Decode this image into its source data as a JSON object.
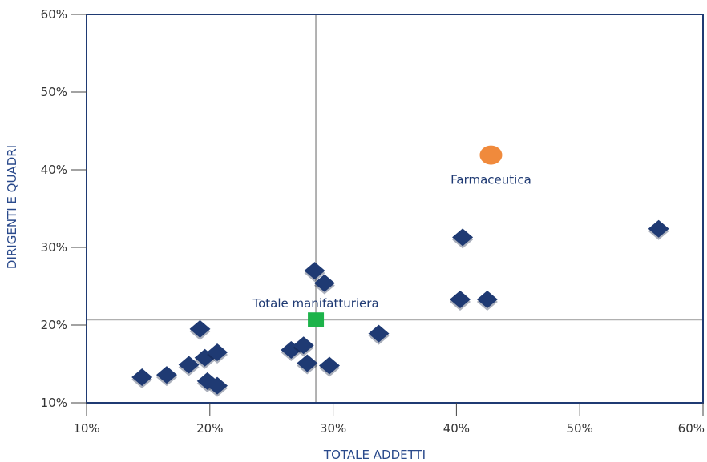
{
  "chart_data": {
    "type": "scatter",
    "xlabel": "TOTALE ADDETTI",
    "ylabel": "DIRIGENTI E QUADRI",
    "xlim": [
      10,
      60
    ],
    "ylim": [
      10,
      60
    ],
    "x_ticks": [
      "10%",
      "20%",
      "30%",
      "40%",
      "50%",
      "60%"
    ],
    "y_ticks": [
      "10%",
      "20%",
      "30%",
      "40%",
      "50%",
      "60%"
    ],
    "grid": false,
    "reference_lines": {
      "x": 28.6,
      "y": 20.7
    },
    "colors": {
      "sectors": "#1f3a73",
      "total": "#1db34a",
      "highlight": "#f08a3c",
      "frame": "#1f3a73",
      "reference": "#b0b0b0"
    },
    "series": [
      {
        "marker": "diamond",
        "points": [
          {
            "x": 14.5,
            "y": 13.3
          },
          {
            "x": 16.5,
            "y": 13.6
          },
          {
            "x": 18.3,
            "y": 14.9
          },
          {
            "x": 19.2,
            "y": 19.5
          },
          {
            "x": 19.6,
            "y": 15.8
          },
          {
            "x": 19.8,
            "y": 12.8
          },
          {
            "x": 20.6,
            "y": 16.5
          },
          {
            "x": 20.6,
            "y": 12.2
          },
          {
            "x": 26.6,
            "y": 16.8
          },
          {
            "x": 27.6,
            "y": 17.4
          },
          {
            "x": 27.9,
            "y": 15.1
          },
          {
            "x": 28.5,
            "y": 27.0
          },
          {
            "x": 29.3,
            "y": 25.4
          },
          {
            "x": 29.7,
            "y": 14.8
          },
          {
            "x": 33.7,
            "y": 18.9
          },
          {
            "x": 40.3,
            "y": 23.3
          },
          {
            "x": 40.5,
            "y": 31.3
          },
          {
            "x": 42.5,
            "y": 23.3
          },
          {
            "x": 56.4,
            "y": 32.4
          }
        ]
      },
      {
        "marker": "square",
        "label": "Totale manifatturiera",
        "points": [
          {
            "x": 28.6,
            "y": 20.7
          }
        ]
      },
      {
        "marker": "circle",
        "label": "Farmaceutica",
        "points": [
          {
            "x": 42.8,
            "y": 41.9
          }
        ]
      }
    ]
  }
}
